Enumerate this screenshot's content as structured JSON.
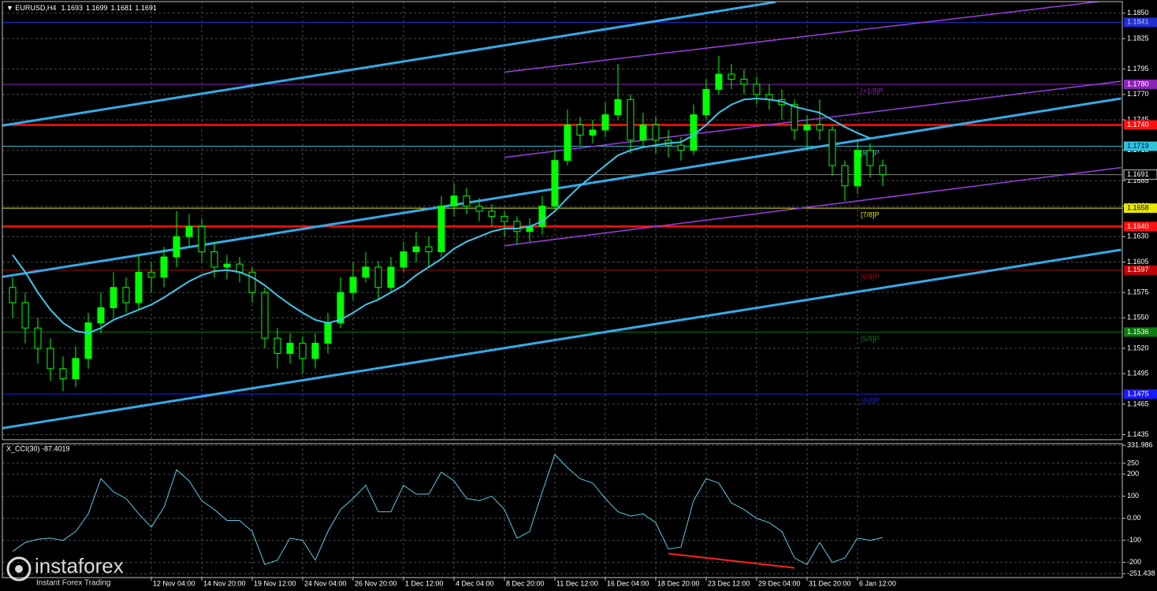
{
  "chart_data": [
    {
      "type": "candlestick",
      "symbol": "EURUSD,H4",
      "ohlc": [
        1.1693,
        1.1699,
        1.1681,
        1.1691
      ],
      "categories": [
        null,
        null,
        null,
        null,
        null,
        null,
        null,
        null,
        null,
        null,
        null,
        "12 Nov 04:00",
        null,
        null,
        null,
        "14 Nov 20:00",
        null,
        null,
        null,
        "19 Nov 12:00",
        null,
        null,
        null,
        "24 Nov 04:00",
        null,
        null,
        null,
        "26 Nov 20:00",
        null,
        null,
        null,
        "1 Dec 12:00",
        null,
        null,
        null,
        "4 Dec 04:00",
        null,
        null,
        null,
        "8 Dec 20:00",
        null,
        null,
        null,
        "11 Dec 12:00",
        null,
        null,
        null,
        "16 Dec 04:00",
        null,
        null,
        null,
        "18 Dec 20:00",
        null,
        null,
        null,
        "23 Dec 12:00",
        null,
        null,
        null,
        "29 Dec 04:00",
        null,
        null,
        null,
        "31 Dec 20:00",
        null,
        null,
        null,
        "6 Jan 12:00",
        null,
        null
      ],
      "open": [
        1.158,
        1.1565,
        1.154,
        1.152,
        1.15,
        1.149,
        1.151,
        1.1545,
        1.156,
        1.158,
        1.1565,
        1.1595,
        1.159,
        1.161,
        1.163,
        1.164,
        1.1615,
        1.16,
        1.1603,
        1.1595,
        1.1575,
        1.153,
        1.1515,
        1.1525,
        1.151,
        1.1525,
        1.1545,
        1.1575,
        1.159,
        1.16,
        1.158,
        1.16,
        1.1615,
        1.162,
        1.1615,
        1.166,
        1.167,
        1.166,
        1.1655,
        1.165,
        1.1645,
        1.1635,
        1.164,
        1.166,
        1.1705,
        1.174,
        1.173,
        1.1735,
        1.175,
        1.1765,
        1.1725,
        1.174,
        1.1725,
        1.172,
        1.1715,
        1.175,
        1.1775,
        1.179,
        1.1785,
        1.178,
        1.177,
        1.1765,
        1.176,
        1.1735,
        1.174,
        1.1735,
        1.17,
        1.168,
        1.1715,
        1.17
      ],
      "high": [
        1.159,
        1.1575,
        1.155,
        1.153,
        1.1512,
        1.1522,
        1.1555,
        1.1575,
        1.1595,
        1.159,
        1.1612,
        1.1605,
        1.162,
        1.1655,
        1.1652,
        1.1648,
        1.1625,
        1.1612,
        1.161,
        1.16,
        1.158,
        1.154,
        1.1535,
        1.1532,
        1.1535,
        1.1555,
        1.159,
        1.1605,
        1.1615,
        1.1606,
        1.161,
        1.1625,
        1.1635,
        1.163,
        1.167,
        1.1682,
        1.1678,
        1.1668,
        1.1662,
        1.1655,
        1.165,
        1.1648,
        1.167,
        1.1715,
        1.1755,
        1.1748,
        1.1745,
        1.1762,
        1.18,
        1.177,
        1.1752,
        1.1748,
        1.1735,
        1.1728,
        1.176,
        1.1785,
        1.1808,
        1.18,
        1.1795,
        1.1788,
        1.178,
        1.1775,
        1.1765,
        1.175,
        1.1765,
        1.174,
        1.1705,
        1.1725,
        1.1722,
        1.1706
      ],
      "low": [
        1.155,
        1.1525,
        1.1505,
        1.1488,
        1.1478,
        1.1482,
        1.15,
        1.1535,
        1.155,
        1.1555,
        1.1558,
        1.1575,
        1.158,
        1.16,
        1.162,
        1.1605,
        1.159,
        1.1588,
        1.1585,
        1.1565,
        1.152,
        1.15,
        1.1505,
        1.1495,
        1.15,
        1.1515,
        1.154,
        1.1568,
        1.1585,
        1.1568,
        1.1575,
        1.1595,
        1.1605,
        1.16,
        1.161,
        1.165,
        1.1652,
        1.1645,
        1.164,
        1.163,
        1.1622,
        1.1625,
        1.1632,
        1.1655,
        1.17,
        1.172,
        1.1722,
        1.1728,
        1.1745,
        1.1712,
        1.1718,
        1.1712,
        1.1708,
        1.1705,
        1.171,
        1.1745,
        1.177,
        1.1775,
        1.177,
        1.176,
        1.1755,
        1.1745,
        1.1725,
        1.1715,
        1.1725,
        1.169,
        1.1665,
        1.1672,
        1.1688,
        1.168
      ],
      "close": [
        1.1565,
        1.154,
        1.152,
        1.15,
        1.149,
        1.151,
        1.1545,
        1.156,
        1.158,
        1.1565,
        1.1595,
        1.159,
        1.161,
        1.163,
        1.164,
        1.1615,
        1.16,
        1.1603,
        1.1595,
        1.1575,
        1.153,
        1.1515,
        1.1525,
        1.151,
        1.1525,
        1.1545,
        1.1575,
        1.159,
        1.16,
        1.158,
        1.16,
        1.1615,
        1.162,
        1.1615,
        1.166,
        1.167,
        1.166,
        1.1655,
        1.165,
        1.1645,
        1.1635,
        1.164,
        1.166,
        1.1705,
        1.174,
        1.173,
        1.1735,
        1.175,
        1.1765,
        1.1725,
        1.174,
        1.1725,
        1.172,
        1.1715,
        1.175,
        1.1775,
        1.179,
        1.1785,
        1.178,
        1.177,
        1.1765,
        1.176,
        1.1735,
        1.174,
        1.1735,
        1.17,
        1.168,
        1.1715,
        1.17,
        1.1691
      ],
      "color": "#00ff00",
      "moving_average": {
        "color": "#3ec6ea",
        "values": [
          1.1612,
          1.1595,
          1.1575,
          1.1558,
          1.1545,
          1.1537,
          1.1535,
          1.154,
          1.1548,
          1.1553,
          1.1558,
          1.1563,
          1.157,
          1.1578,
          1.1586,
          1.1592,
          1.1596,
          1.1597,
          1.1595,
          1.159,
          1.1582,
          1.1572,
          1.1563,
          1.1555,
          1.1548,
          1.1545,
          1.1548,
          1.1555,
          1.1563,
          1.1568,
          1.1575,
          1.1582,
          1.1592,
          1.16,
          1.1608,
          1.1618,
          1.1625,
          1.163,
          1.1635,
          1.1638,
          1.1638,
          1.164,
          1.1645,
          1.1655,
          1.1668,
          1.168,
          1.169,
          1.17,
          1.171,
          1.1715,
          1.1718,
          1.172,
          1.1722,
          1.1723,
          1.173,
          1.174,
          1.1752,
          1.176,
          1.1765,
          1.1766,
          1.1765,
          1.1763,
          1.1758,
          1.1755,
          1.1752,
          1.1745,
          1.1738,
          1.1732,
          1.1727,
          null
        ]
      },
      "trend_lines": [
        {
          "color": "#35a9e6",
          "width": 3,
          "points": [
            [
              -1,
              1.1739
            ],
            [
              60.5,
              1.1861
            ]
          ]
        },
        {
          "color": "#35a9e6",
          "width": 3,
          "points": [
            [
              -1,
              1.159
            ],
            [
              87.9,
              1.1766
            ]
          ]
        },
        {
          "color": "#35a9e6",
          "width": 3,
          "points": [
            [
              -1,
              1.1441
            ],
            [
              87.9,
              1.1617
            ]
          ]
        },
        {
          "color": "#9a3fe0",
          "width": 1.5,
          "points": [
            [
              39,
              1.1792
            ],
            [
              86.5,
              1.1862
            ]
          ]
        },
        {
          "color": "#9a3fe0",
          "width": 1.5,
          "points": [
            [
              39,
              1.1708
            ],
            [
              87.9,
              1.1783
            ]
          ]
        },
        {
          "color": "#9a3fe0",
          "width": 1.5,
          "points": [
            [
              39,
              1.1621
            ],
            [
              87.9,
              1.1698
            ]
          ]
        }
      ],
      "levels": [
        {
          "value": 1.1841,
          "color": "#1f2fd0",
          "width": 1,
          "text_color": "#c0c0ff"
        },
        {
          "value": 1.178,
          "label": "1.1780",
          "color": "#8b22b8",
          "width": 1,
          "text_color": "#ffffff",
          "tag": "[+1/8]P"
        },
        {
          "value": 1.174,
          "label": "1.1740",
          "color": "#ff1010",
          "width": 2.5,
          "text_color": "#ffffff"
        },
        {
          "value": 1.1719,
          "color": "#2fc4d8",
          "width": 1,
          "text_color": "#000080",
          "tag": "[8/8]P"
        },
        {
          "value": 1.1691,
          "color": "#808080",
          "width": 1,
          "text_color": "#ffffff",
          "box": "#000000"
        },
        {
          "value": 1.1658,
          "color": "#e8e800",
          "width": 1,
          "text_color": "#000000",
          "tag": "[7/8]P"
        },
        {
          "value": 1.164,
          "label": "1.1640",
          "color": "#ff1010",
          "width": 2.5,
          "text_color": "#ffffff"
        },
        {
          "value": 1.1597,
          "color": "#c00000",
          "width": 1,
          "text_color": "#ffffff",
          "tag": "[6/8]P"
        },
        {
          "value": 1.1536,
          "color": "#0c7a0c",
          "width": 1,
          "text_color": "#ffffff",
          "tag": "[5/8]P"
        },
        {
          "value": 1.1475,
          "color": "#1a1aff",
          "width": 1,
          "text_color": "#ffffff",
          "tag": "[4/8]P"
        }
      ],
      "ylim": [
        1.143,
        1.1863
      ],
      "yticks": [
        {
          "value": 1.185,
          "label": "1.1850"
        },
        1.1825,
        1.1795,
        {
          "value": 1.177,
          "label": "1.1770"
        },
        1.1745,
        1.1715,
        1.1685,
        {
          "value": 1.166,
          "label": "1.1660"
        },
        {
          "value": 1.163,
          "label": "1.1630"
        },
        1.1605,
        1.1575,
        {
          "value": 1.155,
          "label": "1.1550"
        },
        {
          "value": 1.152,
          "label": "1.1520"
        },
        1.1495,
        1.1465,
        1.1435
      ],
      "grid": true
    },
    {
      "type": "line",
      "title": "X_CCI(30) -87.4019",
      "color": "#5fc8e4",
      "values": [
        -150,
        -110,
        -95,
        -90,
        -100,
        -60,
        20,
        180,
        120,
        90,
        20,
        -40,
        50,
        220,
        170,
        80,
        40,
        -10,
        -10,
        -60,
        -210,
        -190,
        -90,
        -100,
        -190,
        -60,
        40,
        90,
        150,
        30,
        30,
        150,
        110,
        110,
        210,
        170,
        90,
        80,
        100,
        40,
        -90,
        -60,
        120,
        290,
        230,
        180,
        160,
        90,
        30,
        10,
        20,
        -20,
        -140,
        -130,
        80,
        180,
        160,
        70,
        40,
        0,
        -20,
        -60,
        -180,
        -210,
        -110,
        -200,
        -180,
        -90,
        -100,
        -87.4019
      ],
      "divergence": {
        "color": "#ff2020",
        "points": [
          [
            52,
            -160
          ],
          [
            62,
            -225
          ]
        ]
      },
      "ylim": [
        -251.438,
        331.986
      ],
      "yticks": [
        331.986,
        250,
        200,
        100,
        {
          "value": 0,
          "label": "0.00"
        },
        -100,
        -200,
        -251.438
      ],
      "grid": true
    }
  ],
  "logo": {
    "name": "instaforex",
    "tagline": "Instant Forex Trading"
  }
}
